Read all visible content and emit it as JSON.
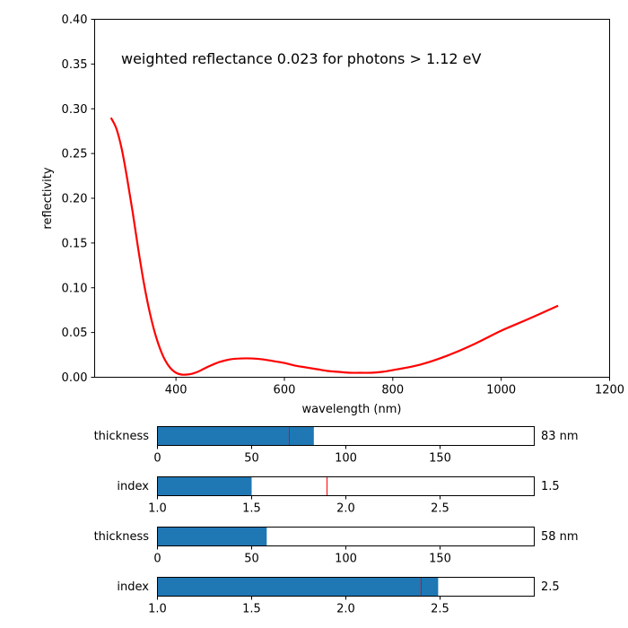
{
  "chart_data": [
    {
      "type": "line",
      "annotation": "weighted reflectance 0.023 for photons > 1.12 eV",
      "xlabel": "wavelength (nm)",
      "ylabel": "reflectivity",
      "xlim": [
        250,
        1200
      ],
      "ylim": [
        0,
        0.4
      ],
      "xticks": [
        "400",
        "600",
        "800",
        "1000",
        "1200"
      ],
      "yticks": [
        "0.00",
        "0.05",
        "0.10",
        "0.15",
        "0.20",
        "0.25",
        "0.30",
        "0.35",
        "0.40"
      ],
      "grid": false,
      "series": [
        {
          "color": "#ff0000",
          "x": [
            280,
            290,
            300,
            310,
            320,
            330,
            340,
            350,
            360,
            370,
            380,
            390,
            400,
            410,
            420,
            430,
            440,
            450,
            460,
            480,
            500,
            520,
            540,
            560,
            580,
            600,
            620,
            640,
            660,
            680,
            700,
            720,
            740,
            760,
            780,
            800,
            850,
            900,
            950,
            1000,
            1050,
            1105
          ],
          "y": [
            0.29,
            0.278,
            0.255,
            0.222,
            0.185,
            0.145,
            0.108,
            0.077,
            0.052,
            0.033,
            0.019,
            0.01,
            0.005,
            0.003,
            0.003,
            0.004,
            0.006,
            0.009,
            0.012,
            0.017,
            0.02,
            0.021,
            0.021,
            0.02,
            0.018,
            0.016,
            0.013,
            0.011,
            0.009,
            0.007,
            0.006,
            0.005,
            0.005,
            0.005,
            0.006,
            0.008,
            0.014,
            0.024,
            0.037,
            0.052,
            0.065,
            0.08
          ]
        }
      ]
    },
    {
      "type": "bar",
      "label": "thickness",
      "value": 83,
      "value_text": "83 nm",
      "range": [
        0,
        200
      ],
      "marker": 70,
      "ticks": [
        "0",
        "50",
        "100",
        "150"
      ],
      "bar_color": "#1f77b4",
      "marker_color": "#ff0000"
    },
    {
      "type": "bar",
      "label": "index",
      "value": 1.5,
      "value_text": "1.5",
      "range": [
        1.0,
        3.0
      ],
      "marker": 1.9,
      "ticks": [
        "1.0",
        "1.5",
        "2.0",
        "2.5"
      ],
      "bar_color": "#1f77b4",
      "marker_color": "#ff0000"
    },
    {
      "type": "bar",
      "label": "thickness",
      "value": 58,
      "value_text": "58 nm",
      "range": [
        0,
        200
      ],
      "marker": null,
      "ticks": [
        "0",
        "50",
        "100",
        "150"
      ],
      "bar_color": "#1f77b4",
      "marker_color": "#ff0000"
    },
    {
      "type": "bar",
      "label": "index",
      "value": 2.49,
      "value_text": "2.5",
      "range": [
        1.0,
        3.0
      ],
      "marker": 2.4,
      "ticks": [
        "1.0",
        "1.5",
        "2.0",
        "2.5"
      ],
      "bar_color": "#1f77b4",
      "marker_color": "#ff0000"
    }
  ]
}
